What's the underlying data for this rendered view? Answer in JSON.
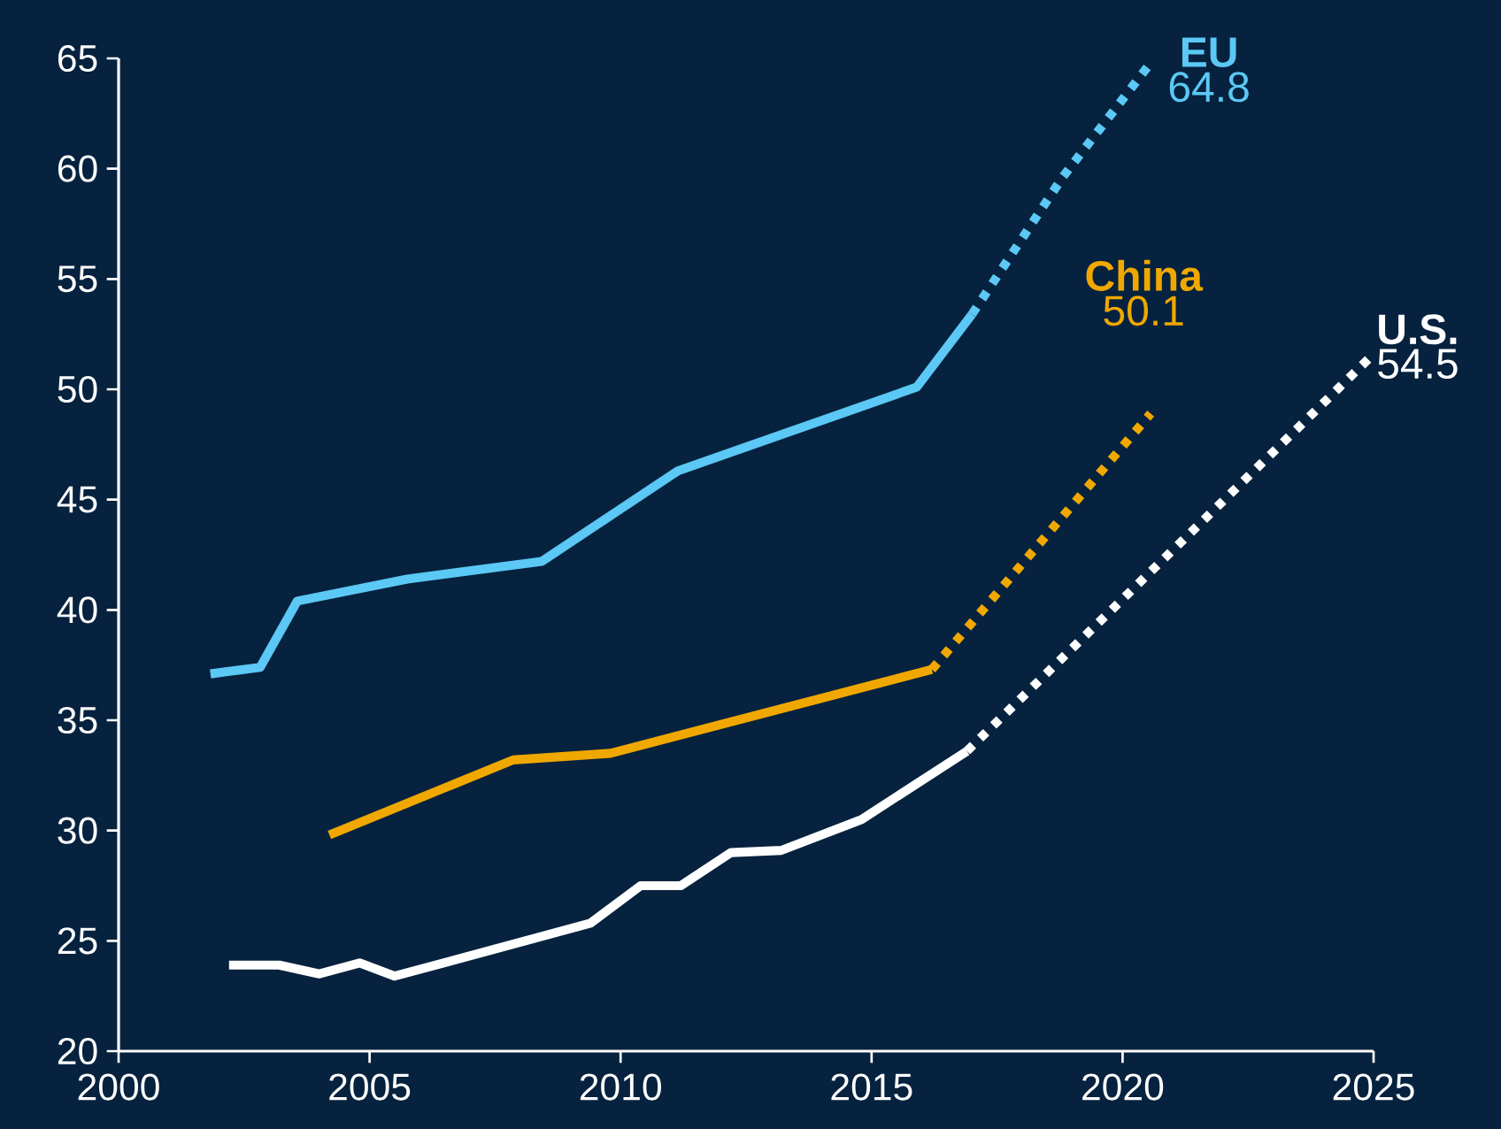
{
  "chart_data": {
    "type": "line",
    "xlim": [
      2000,
      2025
    ],
    "ylim": [
      20,
      65
    ],
    "xticks": [
      2000,
      2005,
      2010,
      2015,
      2020,
      2025
    ],
    "yticks": [
      20,
      25,
      30,
      35,
      40,
      45,
      50,
      55,
      60,
      65
    ],
    "annotations": [
      "64.8",
      "50.1",
      "54.5"
    ],
    "series": [
      {
        "color": "#5bc8f5",
        "line_style": "solid",
        "x": [
          2001.83,
          2002.82,
          2003.56,
          2005.75,
          2008.43,
          2011.14,
          2015.9,
          2017.0
        ],
        "values": [
          37.1,
          37.4,
          40.4,
          41.4,
          42.2,
          46.3,
          50.1,
          53.4
        ]
      },
      {
        "name": "EU",
        "color": "#5bc8f5",
        "line_style": "dotted",
        "x": [
          2017.0,
          2018.8,
          2020.56
        ],
        "values": [
          53.4,
          59.6,
          64.8
        ]
      },
      {
        "color": "#f0a800",
        "line_style": "solid",
        "x": [
          2004.2,
          2007.86,
          2009.8,
          2016.2
        ],
        "values": [
          29.8,
          33.2,
          33.5,
          37.3
        ]
      },
      {
        "name": "China",
        "color": "#f0a800",
        "line_style": "dotted",
        "x": [
          2016.2,
          2020.56
        ],
        "values": [
          37.3,
          48.9
        ]
      },
      {
        "color": "#ffffff",
        "line_style": "solid",
        "x": [
          2002.2,
          2003.2,
          2004.0,
          2004.8,
          2005.5,
          2009.4,
          2010.4,
          2011.2,
          2012.2,
          2013.2,
          2014.8,
          2016.9
        ],
        "values": [
          23.9,
          23.9,
          23.5,
          24.0,
          23.4,
          25.8,
          27.5,
          27.5,
          29.0,
          29.1,
          30.5,
          33.6
        ]
      },
      {
        "name": "U.S.",
        "color": "#ffffff",
        "line_style": "dotted",
        "x": [
          2016.9,
          2025.0
        ],
        "values": [
          33.6,
          51.6
        ]
      }
    ]
  }
}
